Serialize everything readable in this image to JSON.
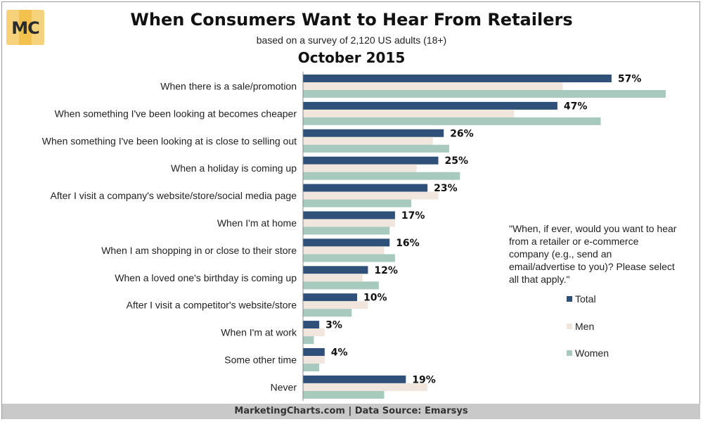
{
  "header": {
    "logo_text": "MC",
    "title": "When Consumers Want to Hear From Retailers",
    "subtitle": "based on a survey of 2,120 US adults (18+)",
    "period": "October 2015"
  },
  "note": "\"When, if ever, would you want to hear from a retailer or e-commerce company (e.g., send an email/advertise to you)? Please select all that apply.\"",
  "footer": "MarketingCharts.com | Data Source: Emarsys",
  "colors": {
    "total": "#2f5179",
    "men": "#f1e6dd",
    "women": "#a8c9bd"
  },
  "chart_data": {
    "type": "bar",
    "orientation": "horizontal",
    "categories": [
      "When there is a sale/promotion",
      "When something I've been looking at becomes cheaper",
      "When something I've been looking at is close to selling out",
      "When a holiday is coming up",
      "After I visit a company's website/store/social media page",
      "When I'm at home",
      "When I am shopping in or close to their store",
      "When a loved one's birthday is coming up",
      "After I visit a competitor's website/store",
      "When I'm at work",
      "Some other time",
      "Never"
    ],
    "series": [
      {
        "name": "Total",
        "values": [
          57,
          47,
          26,
          25,
          23,
          17,
          16,
          12,
          10,
          3,
          4,
          19
        ]
      },
      {
        "name": "Men",
        "values": [
          48,
          39,
          24,
          21,
          25,
          17,
          15,
          11,
          12,
          4,
          4,
          23
        ]
      },
      {
        "name": "Women",
        "values": [
          67,
          55,
          27,
          29,
          20,
          16,
          17,
          14,
          9,
          2,
          3,
          15
        ]
      }
    ],
    "data_labels": [
      "57%",
      "47%",
      "26%",
      "25%",
      "23%",
      "17%",
      "16%",
      "12%",
      "10%",
      "3%",
      "4%",
      "19%"
    ],
    "xlim": [
      0,
      70
    ],
    "legend_position": "right",
    "grid": false
  }
}
